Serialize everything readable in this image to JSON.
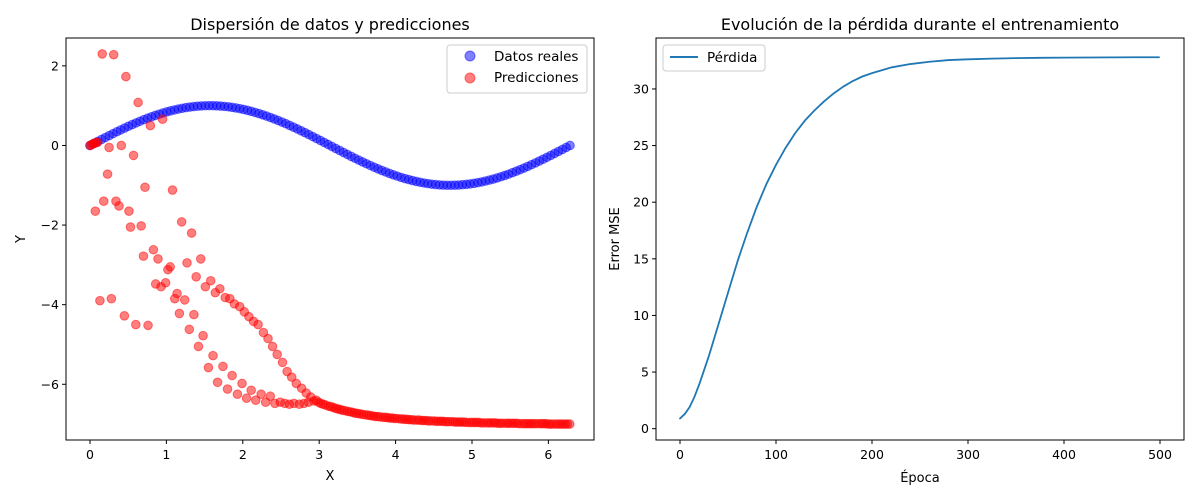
{
  "chart_data": [
    {
      "type": "scatter",
      "title": "Dispersión de datos y predicciones",
      "xlabel": "X",
      "ylabel": "Y",
      "xlim": [
        -0.314,
        6.597
      ],
      "ylim": [
        -7.4,
        2.7
      ],
      "xticks": [
        0,
        1,
        2,
        3,
        4,
        5,
        6
      ],
      "yticks": [
        2,
        0,
        -2,
        -4,
        -6
      ],
      "ytick_labels": [
        "2",
        "0",
        "−2",
        "−4",
        "−6"
      ],
      "legend_position": "top-right",
      "grid": false,
      "series": [
        {
          "name": "Datos reales",
          "color": "#0000ff",
          "n_points": 126,
          "x_range": [
            0,
            6.2832
          ],
          "y_function": "sin(x)"
        },
        {
          "name": "Predicciones",
          "color": "#ff0000",
          "points": [
            [
              0.0,
              0.0
            ],
            [
              0.02,
              0.02
            ],
            [
              0.04,
              0.04
            ],
            [
              0.06,
              0.06
            ],
            [
              0.08,
              0.07
            ],
            [
              0.1,
              0.08
            ],
            [
              0.07,
              -1.65
            ],
            [
              0.13,
              -3.9
            ],
            [
              0.16,
              2.3
            ],
            [
              0.18,
              -1.4
            ],
            [
              0.23,
              -0.72
            ],
            [
              0.25,
              -0.05
            ],
            [
              0.28,
              -3.85
            ],
            [
              0.31,
              2.28
            ],
            [
              0.34,
              -1.4
            ],
            [
              0.38,
              -1.52
            ],
            [
              0.41,
              0.0
            ],
            [
              0.45,
              -4.28
            ],
            [
              0.47,
              1.73
            ],
            [
              0.51,
              -1.65
            ],
            [
              0.53,
              -2.05
            ],
            [
              0.57,
              -0.25
            ],
            [
              0.6,
              -4.5
            ],
            [
              0.63,
              1.08
            ],
            [
              0.67,
              -2.02
            ],
            [
              0.7,
              -2.78
            ],
            [
              0.72,
              -1.05
            ],
            [
              0.76,
              -4.52
            ],
            [
              0.79,
              0.5
            ],
            [
              0.83,
              -2.62
            ],
            [
              0.86,
              -3.48
            ],
            [
              0.89,
              -2.85
            ],
            [
              0.93,
              -3.55
            ],
            [
              0.95,
              0.66
            ],
            [
              0.99,
              -3.45
            ],
            [
              1.02,
              -3.12
            ],
            [
              1.05,
              -3.05
            ],
            [
              1.08,
              -1.12
            ],
            [
              1.11,
              -3.85
            ],
            [
              1.14,
              -3.72
            ],
            [
              1.17,
              -4.22
            ],
            [
              1.2,
              -1.92
            ],
            [
              1.24,
              -3.88
            ],
            [
              1.27,
              -2.95
            ],
            [
              1.3,
              -4.62
            ],
            [
              1.33,
              -2.2
            ],
            [
              1.36,
              -4.25
            ],
            [
              1.39,
              -3.3
            ],
            [
              1.42,
              -5.05
            ],
            [
              1.45,
              -2.85
            ],
            [
              1.48,
              -4.78
            ],
            [
              1.51,
              -3.55
            ],
            [
              1.55,
              -5.58
            ],
            [
              1.58,
              -3.4
            ],
            [
              1.61,
              -5.28
            ],
            [
              1.64,
              -3.7
            ],
            [
              1.67,
              -5.95
            ],
            [
              1.7,
              -3.6
            ],
            [
              1.74,
              -5.55
            ],
            [
              1.77,
              -3.82
            ],
            [
              1.8,
              -6.12
            ],
            [
              1.83,
              -3.85
            ],
            [
              1.86,
              -5.78
            ],
            [
              1.89,
              -3.98
            ],
            [
              1.93,
              -6.25
            ],
            [
              1.96,
              -4.05
            ],
            [
              1.99,
              -5.98
            ],
            [
              2.02,
              -4.18
            ],
            [
              2.05,
              -6.35
            ],
            [
              2.08,
              -4.3
            ],
            [
              2.11,
              -6.15
            ],
            [
              2.14,
              -4.42
            ],
            [
              2.17,
              -6.4
            ],
            [
              2.2,
              -4.5
            ],
            [
              2.24,
              -6.25
            ],
            [
              2.27,
              -4.7
            ],
            [
              2.3,
              -6.45
            ],
            [
              2.33,
              -4.85
            ],
            [
              2.36,
              -6.3
            ],
            [
              2.39,
              -5.05
            ],
            [
              2.42,
              -6.48
            ],
            [
              2.45,
              -5.25
            ],
            [
              2.49,
              -6.45
            ],
            [
              2.52,
              -5.45
            ],
            [
              2.55,
              -6.48
            ],
            [
              2.58,
              -5.68
            ],
            [
              2.61,
              -6.5
            ],
            [
              2.64,
              -5.82
            ],
            [
              2.67,
              -6.48
            ],
            [
              2.7,
              -5.98
            ],
            [
              2.74,
              -6.5
            ],
            [
              2.77,
              -6.1
            ],
            [
              2.8,
              -6.48
            ],
            [
              2.83,
              -6.22
            ],
            [
              2.86,
              -6.45
            ],
            [
              2.89,
              -6.32
            ],
            [
              2.93,
              -6.42
            ],
            [
              2.96,
              -6.4
            ],
            [
              2.99,
              -6.45
            ],
            [
              3.02,
              -6.48
            ],
            [
              3.05,
              -6.5
            ],
            [
              3.08,
              -6.52
            ],
            [
              3.12,
              -6.55
            ],
            [
              3.15,
              -6.56
            ],
            [
              3.18,
              -6.58
            ],
            [
              3.21,
              -6.6
            ],
            [
              3.24,
              -6.62
            ],
            [
              3.27,
              -6.63
            ],
            [
              3.3,
              -6.65
            ],
            [
              3.33,
              -6.66
            ],
            [
              3.37,
              -6.68
            ],
            [
              3.4,
              -6.69
            ],
            [
              3.43,
              -6.7
            ],
            [
              3.46,
              -6.72
            ],
            [
              3.49,
              -6.73
            ],
            [
              3.52,
              -6.74
            ],
            [
              3.55,
              -6.75
            ],
            [
              3.58,
              -6.76
            ],
            [
              3.62,
              -6.77
            ],
            [
              3.65,
              -6.78
            ],
            [
              3.68,
              -6.79
            ],
            [
              3.71,
              -6.8
            ],
            [
              3.74,
              -6.81
            ],
            [
              3.77,
              -6.81
            ],
            [
              3.8,
              -6.82
            ],
            [
              3.84,
              -6.83
            ],
            [
              3.87,
              -6.83
            ],
            [
              3.9,
              -6.84
            ],
            [
              3.93,
              -6.85
            ],
            [
              3.96,
              -6.85
            ],
            [
              3.99,
              -6.86
            ],
            [
              4.02,
              -6.86
            ],
            [
              4.06,
              -6.87
            ],
            [
              4.09,
              -6.87
            ],
            [
              4.12,
              -6.88
            ],
            [
              4.15,
              -6.88
            ],
            [
              4.18,
              -6.89
            ],
            [
              4.21,
              -6.89
            ],
            [
              4.24,
              -6.9
            ],
            [
              4.28,
              -6.9
            ],
            [
              4.31,
              -6.9
            ],
            [
              4.34,
              -6.91
            ],
            [
              4.37,
              -6.91
            ],
            [
              4.4,
              -6.91
            ],
            [
              4.43,
              -6.92
            ],
            [
              4.46,
              -6.92
            ],
            [
              4.5,
              -6.92
            ],
            [
              4.53,
              -6.93
            ],
            [
              4.56,
              -6.93
            ],
            [
              4.59,
              -6.93
            ],
            [
              4.62,
              -6.93
            ],
            [
              4.65,
              -6.94
            ],
            [
              4.68,
              -6.94
            ],
            [
              4.71,
              -6.94
            ],
            [
              4.75,
              -6.94
            ],
            [
              4.78,
              -6.95
            ],
            [
              4.81,
              -6.95
            ],
            [
              4.84,
              -6.95
            ],
            [
              4.87,
              -6.95
            ],
            [
              4.9,
              -6.95
            ],
            [
              4.93,
              -6.96
            ],
            [
              4.97,
              -6.96
            ],
            [
              5.0,
              -6.96
            ],
            [
              5.03,
              -6.96
            ],
            [
              5.06,
              -6.96
            ],
            [
              5.09,
              -6.96
            ],
            [
              5.12,
              -6.97
            ],
            [
              5.15,
              -6.97
            ],
            [
              5.19,
              -6.97
            ],
            [
              5.22,
              -6.97
            ],
            [
              5.25,
              -6.97
            ],
            [
              5.28,
              -6.97
            ],
            [
              5.31,
              -6.97
            ],
            [
              5.34,
              -6.98
            ],
            [
              5.37,
              -6.98
            ],
            [
              5.4,
              -6.98
            ],
            [
              5.44,
              -6.98
            ],
            [
              5.47,
              -6.98
            ],
            [
              5.5,
              -6.98
            ],
            [
              5.53,
              -6.98
            ],
            [
              5.56,
              -6.98
            ],
            [
              5.59,
              -6.98
            ],
            [
              5.62,
              -6.99
            ],
            [
              5.66,
              -6.99
            ],
            [
              5.69,
              -6.99
            ],
            [
              5.72,
              -6.99
            ],
            [
              5.75,
              -6.99
            ],
            [
              5.78,
              -6.99
            ],
            [
              5.81,
              -6.99
            ],
            [
              5.84,
              -6.99
            ],
            [
              5.88,
              -6.99
            ],
            [
              5.91,
              -6.99
            ],
            [
              5.94,
              -6.99
            ],
            [
              5.97,
              -6.99
            ],
            [
              6.0,
              -7.0
            ],
            [
              6.03,
              -7.0
            ],
            [
              6.06,
              -7.0
            ],
            [
              6.1,
              -7.0
            ],
            [
              6.13,
              -7.0
            ],
            [
              6.16,
              -7.0
            ],
            [
              6.19,
              -7.0
            ],
            [
              6.22,
              -7.0
            ],
            [
              6.25,
              -7.0
            ],
            [
              6.28,
              -7.0
            ]
          ]
        }
      ]
    },
    {
      "type": "line",
      "title": "Evolución de la pérdida durante el entrenamiento",
      "xlabel": "Época",
      "ylabel": "Error MSE",
      "xlim": [
        -25,
        525
      ],
      "ylim": [
        -1.0,
        34.5
      ],
      "xticks": [
        0,
        100,
        200,
        300,
        400,
        500
      ],
      "yticks": [
        0,
        5,
        10,
        15,
        20,
        25,
        30
      ],
      "legend_position": "top-left",
      "grid": false,
      "series": [
        {
          "name": "Pérdida",
          "color": "#1f77b4",
          "x": [
            0,
            5,
            10,
            15,
            20,
            30,
            40,
            50,
            60,
            70,
            80,
            90,
            100,
            110,
            120,
            130,
            140,
            150,
            160,
            170,
            180,
            190,
            200,
            220,
            240,
            260,
            280,
            300,
            325,
            350,
            375,
            400,
            425,
            450,
            475,
            499
          ],
          "y": [
            0.9,
            1.3,
            1.9,
            2.8,
            3.9,
            6.4,
            9.2,
            12.0,
            14.8,
            17.3,
            19.6,
            21.6,
            23.3,
            24.8,
            26.1,
            27.2,
            28.1,
            28.9,
            29.6,
            30.2,
            30.7,
            31.1,
            31.4,
            31.9,
            32.2,
            32.4,
            32.55,
            32.62,
            32.68,
            32.72,
            32.75,
            32.77,
            32.78,
            32.79,
            32.8,
            32.8
          ]
        }
      ]
    }
  ]
}
